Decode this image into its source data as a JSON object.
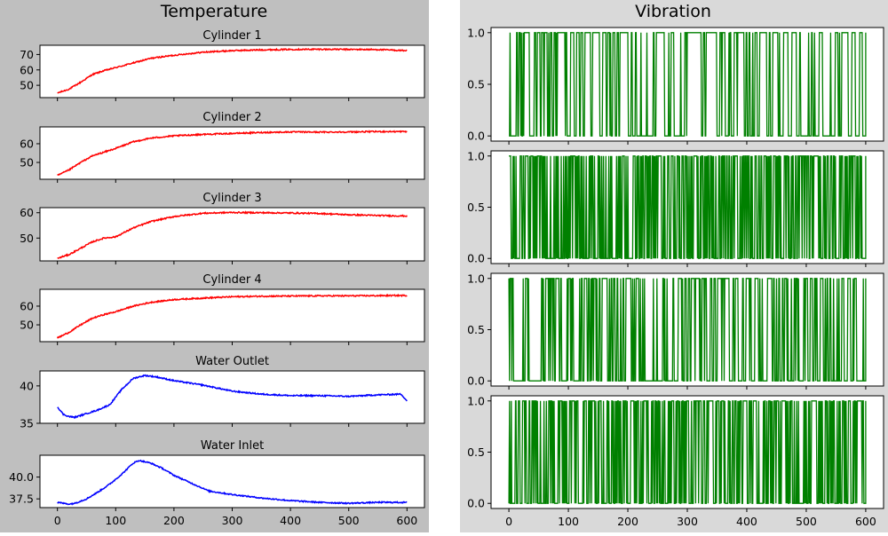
{
  "panel_titles": [
    "Temperature",
    "Vibration"
  ],
  "colors": {
    "left_bg": "#bfbfbf",
    "right_bg": "#d9d9d9",
    "temp": "#ff0000",
    "water": "#0000ff",
    "vibration": "#008000"
  },
  "x_ticks": [
    0,
    100,
    200,
    300,
    400,
    500,
    600
  ],
  "chart_data": [
    {
      "type": "line",
      "panel": "Temperature",
      "title": "Cylinder 1",
      "color": "red",
      "xlim": [
        -30,
        630
      ],
      "ylim": [
        42,
        76
      ],
      "yticks": [
        50,
        60,
        70
      ],
      "ytick_labels": [
        "50",
        "60",
        "70"
      ],
      "series": [
        {
          "x": [
            0,
            20,
            40,
            60,
            80,
            100,
            130,
            160,
            200,
            250,
            300,
            350,
            400,
            450,
            500,
            550,
            600
          ],
          "y": [
            45,
            47.5,
            52,
            57,
            59.5,
            61.5,
            64.5,
            67.5,
            69.5,
            71.5,
            72.5,
            73,
            73.3,
            73.4,
            73.3,
            73.2,
            72.5
          ]
        }
      ]
    },
    {
      "type": "line",
      "panel": "Temperature",
      "title": "Cylinder 2",
      "color": "red",
      "xlim": [
        -30,
        630
      ],
      "ylim": [
        41,
        69
      ],
      "yticks": [
        50,
        60
      ],
      "ytick_labels": [
        "50",
        "60"
      ],
      "series": [
        {
          "x": [
            0,
            20,
            40,
            60,
            80,
            100,
            130,
            160,
            200,
            250,
            300,
            350,
            400,
            450,
            500,
            550,
            600
          ],
          "y": [
            43,
            46,
            50,
            53.5,
            55.5,
            57.5,
            61,
            63,
            64.2,
            65,
            65.5,
            66,
            66.3,
            66.2,
            66.3,
            66.5,
            66.5
          ]
        }
      ]
    },
    {
      "type": "line",
      "panel": "Temperature",
      "title": "Cylinder 3",
      "color": "red",
      "xlim": [
        -30,
        630
      ],
      "ylim": [
        41,
        62
      ],
      "yticks": [
        50,
        60
      ],
      "ytick_labels": [
        "50",
        "60"
      ],
      "series": [
        {
          "x": [
            0,
            20,
            40,
            60,
            80,
            100,
            130,
            160,
            200,
            250,
            300,
            350,
            400,
            450,
            500,
            550,
            600
          ],
          "y": [
            42,
            43.5,
            46,
            48.5,
            50,
            50.5,
            54,
            56.5,
            58.5,
            59.8,
            60.1,
            60,
            59.9,
            59.7,
            59.2,
            58.9,
            58.7
          ]
        }
      ]
    },
    {
      "type": "line",
      "panel": "Temperature",
      "title": "Cylinder 4",
      "color": "red",
      "xlim": [
        -30,
        630
      ],
      "ylim": [
        41,
        69
      ],
      "yticks": [
        50,
        60
      ],
      "ytick_labels": [
        "50",
        "60"
      ],
      "series": [
        {
          "x": [
            0,
            20,
            40,
            60,
            80,
            100,
            130,
            160,
            200,
            250,
            300,
            350,
            400,
            450,
            500,
            550,
            600
          ],
          "y": [
            43,
            46,
            50,
            53.5,
            55.5,
            57,
            60,
            62,
            63.5,
            64.3,
            65,
            65.3,
            65.4,
            65.5,
            65.5,
            65.6,
            65.7
          ]
        }
      ]
    },
    {
      "type": "line",
      "panel": "Temperature",
      "title": "Water Outlet",
      "color": "blue",
      "xlim": [
        -30,
        630
      ],
      "ylim": [
        35,
        42
      ],
      "yticks": [
        35,
        40
      ],
      "ytick_labels": [
        "35",
        "40"
      ],
      "series": [
        {
          "x": [
            0,
            10,
            20,
            30,
            50,
            70,
            90,
            110,
            130,
            150,
            170,
            200,
            250,
            300,
            350,
            400,
            450,
            500,
            550,
            590,
            600
          ],
          "y": [
            37.2,
            36.2,
            35.9,
            35.8,
            36.3,
            36.8,
            37.5,
            39.5,
            41,
            41.4,
            41.2,
            40.7,
            40.1,
            39.3,
            38.9,
            38.7,
            38.7,
            38.6,
            38.8,
            38.9,
            38
          ]
        }
      ]
    },
    {
      "type": "line",
      "panel": "Temperature",
      "title": "Water Inlet",
      "color": "blue",
      "xlim": [
        -30,
        630
      ],
      "ylim": [
        36.5,
        42.5
      ],
      "yticks": [
        37.5,
        40.0
      ],
      "ytick_labels": [
        "37.5",
        "40.0"
      ],
      "series": [
        {
          "x": [
            0,
            10,
            20,
            30,
            50,
            70,
            90,
            110,
            130,
            140,
            160,
            180,
            200,
            230,
            260,
            300,
            350,
            400,
            450,
            500,
            550,
            580,
            600
          ],
          "y": [
            37.1,
            37,
            36.9,
            37,
            37.5,
            38.3,
            39.2,
            40.3,
            41.6,
            41.9,
            41.6,
            41,
            40.2,
            39.3,
            38.4,
            38,
            37.6,
            37.3,
            37.1,
            37,
            37.1,
            37.1,
            37.1
          ]
        }
      ]
    },
    {
      "type": "line",
      "panel": "Vibration",
      "title": "",
      "color": "green",
      "xlim": [
        -30,
        630
      ],
      "ylim": [
        -0.05,
        1.05
      ],
      "yticks": [
        0,
        0.5,
        1
      ],
      "ytick_labels": [
        "0.0",
        "0.5",
        "1.0"
      ],
      "series": [
        {
          "values": "binary_0_1",
          "density": 0.25,
          "x_range": [
            0,
            600
          ]
        }
      ]
    },
    {
      "type": "line",
      "panel": "Vibration",
      "title": "",
      "color": "green",
      "xlim": [
        -30,
        630
      ],
      "ylim": [
        -0.05,
        1.05
      ],
      "yticks": [
        0,
        0.5,
        1
      ],
      "ytick_labels": [
        "0.0",
        "0.5",
        "1.0"
      ],
      "series": [
        {
          "values": "binary_0_1",
          "density": 0.55,
          "x_range": [
            0,
            600
          ]
        }
      ]
    },
    {
      "type": "line",
      "panel": "Vibration",
      "title": "",
      "color": "green",
      "xlim": [
        -30,
        630
      ],
      "ylim": [
        -0.05,
        1.05
      ],
      "yticks": [
        0,
        0.5,
        1
      ],
      "ytick_labels": [
        "0.0",
        "0.5",
        "1.0"
      ],
      "series": [
        {
          "values": "binary_0_1",
          "density": 0.3,
          "x_range": [
            0,
            600
          ]
        }
      ]
    },
    {
      "type": "line",
      "panel": "Vibration",
      "title": "",
      "color": "green",
      "xlim": [
        -30,
        630
      ],
      "ylim": [
        -0.05,
        1.05
      ],
      "yticks": [
        0,
        0.5,
        1
      ],
      "ytick_labels": [
        "0.0",
        "0.5",
        "1.0"
      ],
      "series": [
        {
          "values": "binary_0_1",
          "density": 0.5,
          "x_range": [
            0,
            600
          ]
        }
      ]
    }
  ]
}
